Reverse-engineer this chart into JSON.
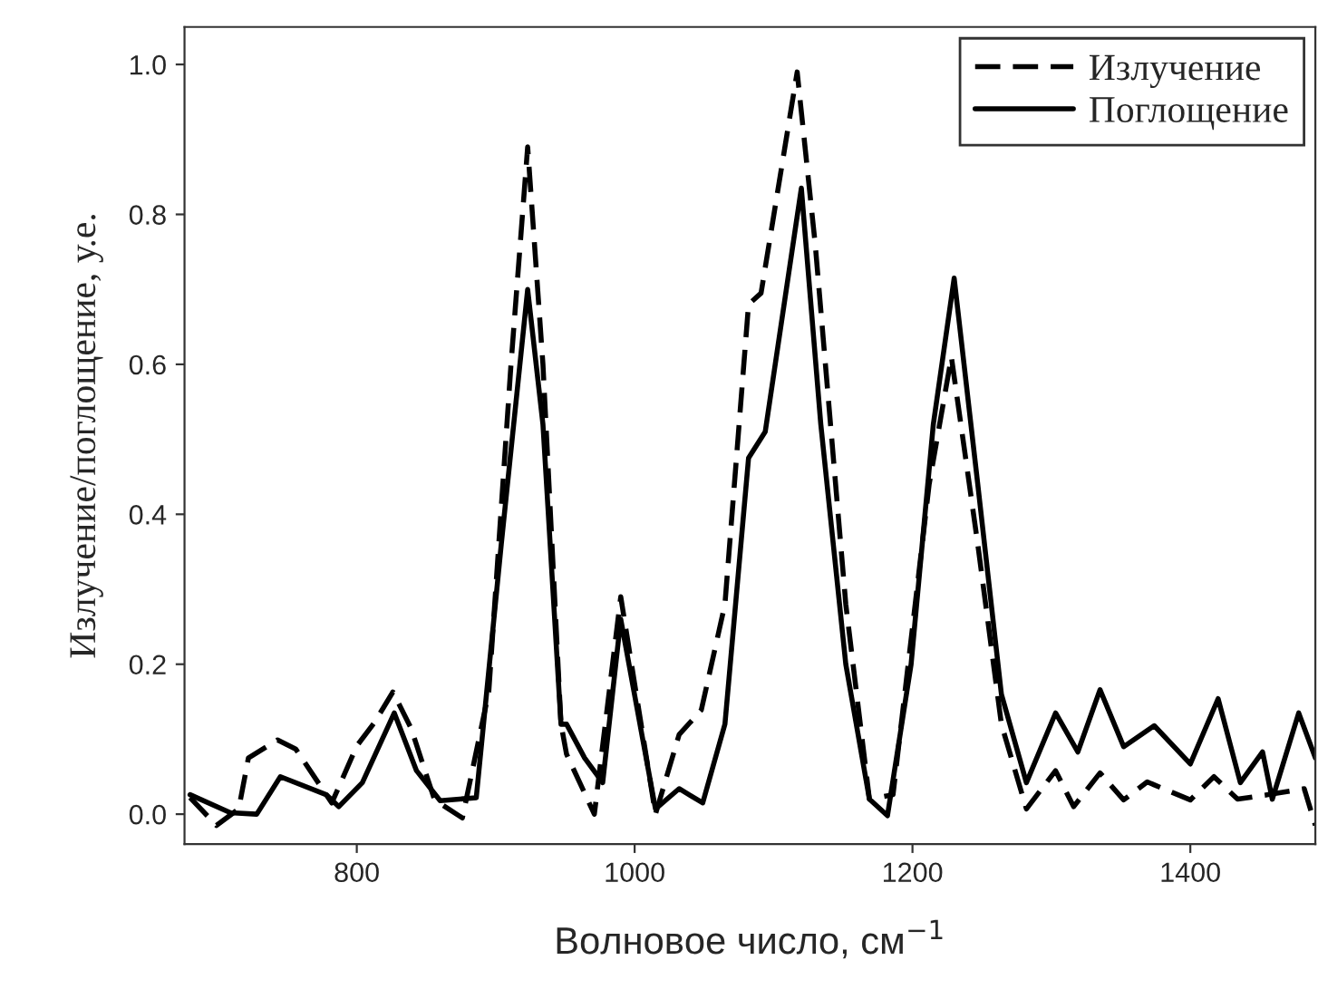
{
  "chart_data": {
    "type": "line",
    "xlabel": "Волновое число, см$^{−1}$",
    "ylabel": "Излучение/поглощение, у.е.",
    "xlim": [
      676,
      1490
    ],
    "ylim": [
      -0.04,
      1.05
    ],
    "xticks": [
      800,
      1000,
      1200,
      1400
    ],
    "yticks": [
      {
        "value": 0,
        "label": "0.0"
      },
      {
        "value": 0.2,
        "label": "0.2"
      },
      {
        "value": 0.4,
        "label": "0.4"
      },
      {
        "value": 0.6,
        "label": "0.6"
      },
      {
        "value": 0.8,
        "label": "0.8"
      },
      {
        "value": 1.0,
        "label": "1.0"
      }
    ],
    "grid": false,
    "legend": "top right",
    "marker": "none",
    "series": [
      {
        "name": "Излучение",
        "color": "#000000",
        "line_style": "dashed",
        "x": [
          680,
          699,
          715,
          722,
          743,
          756,
          782,
          800,
          813,
          826,
          839,
          856,
          876,
          895,
          911,
          923,
          934,
          947,
          951,
          971,
          990,
          1015,
          1032,
          1048,
          1065,
          1082,
          1091,
          1117,
          1130,
          1152,
          1169,
          1186,
          1212,
          1228,
          1247,
          1264,
          1282,
          1303,
          1316,
          1335,
          1352,
          1369,
          1400,
          1417,
          1434,
          1456,
          1482,
          1490
        ],
        "values": [
          0.022,
          -0.015,
          0.007,
          0.075,
          0.099,
          0.087,
          0.015,
          0.091,
          0.123,
          0.163,
          0.115,
          0.019,
          -0.005,
          0.163,
          0.6,
          0.89,
          0.6,
          0.12,
          0.08,
          0.0,
          0.29,
          0.0,
          0.106,
          0.139,
          0.28,
          0.68,
          0.695,
          0.99,
          0.76,
          0.28,
          0.02,
          0.026,
          0.44,
          0.61,
          0.36,
          0.12,
          0.007,
          0.058,
          0.01,
          0.055,
          0.019,
          0.043,
          0.019,
          0.05,
          0.02,
          0.026,
          0.034,
          -0.015
        ]
      },
      {
        "name": "Поглощение",
        "color": "#000000",
        "line_style": "solid",
        "x": [
          680,
          709,
          728,
          745,
          778,
          787,
          804,
          827,
          843,
          860,
          886,
          904,
          923,
          934,
          947,
          951,
          964,
          977,
          990,
          1015,
          1032,
          1049,
          1065,
          1082,
          1094,
          1120,
          1134,
          1152,
          1169,
          1182,
          1199,
          1215,
          1230,
          1247,
          1264,
          1282,
          1303,
          1319,
          1335,
          1352,
          1374,
          1400,
          1420,
          1436,
          1452,
          1459,
          1478,
          1490
        ],
        "values": [
          0.026,
          0.002,
          0.0,
          0.05,
          0.026,
          0.01,
          0.042,
          0.135,
          0.058,
          0.018,
          0.022,
          0.36,
          0.7,
          0.52,
          0.12,
          0.12,
          0.075,
          0.042,
          0.26,
          0.007,
          0.034,
          0.015,
          0.12,
          0.475,
          0.51,
          0.835,
          0.52,
          0.2,
          0.02,
          -0.002,
          0.2,
          0.52,
          0.715,
          0.44,
          0.16,
          0.042,
          0.135,
          0.083,
          0.166,
          0.09,
          0.118,
          0.067,
          0.154,
          0.042,
          0.083,
          0.02,
          0.135,
          0.075
        ]
      }
    ]
  }
}
